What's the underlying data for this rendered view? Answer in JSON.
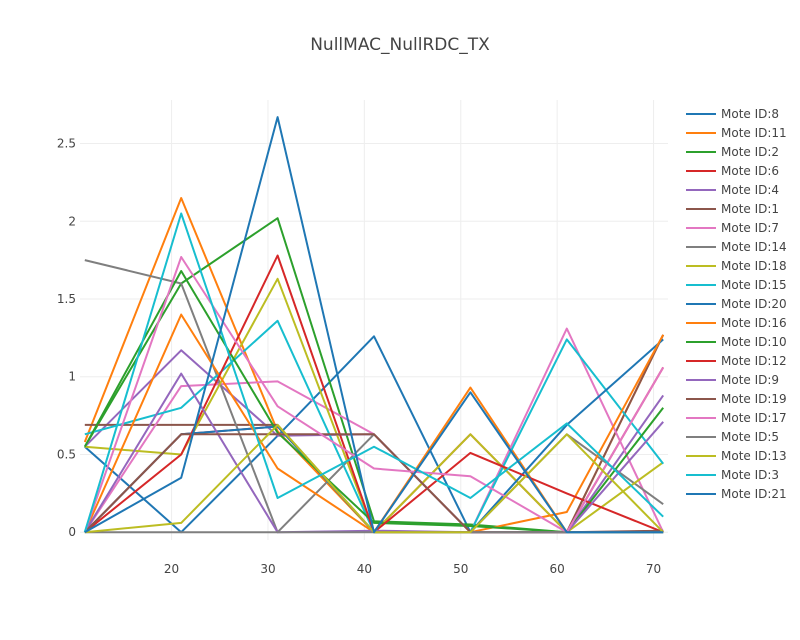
{
  "chart_data": {
    "type": "line",
    "title": "NullMAC_NullRDC_TX",
    "xlabel": "",
    "ylabel": "",
    "xlim": [
      10.5,
      71.5
    ],
    "ylim": [
      -0.05,
      2.78
    ],
    "x_ticks": [
      20,
      30,
      40,
      50,
      60,
      70
    ],
    "y_ticks": [
      0,
      0.5,
      1,
      1.5,
      2,
      2.5
    ],
    "y_tick_labels": [
      "0",
      "0.5",
      "1",
      "1.5",
      "2",
      "2.5"
    ],
    "grid": true,
    "legend_position": "right",
    "series": [
      {
        "name": "Mote ID:8",
        "color": "#1f77b4",
        "x": [
          11,
          21,
          31,
          41,
          51,
          61,
          71
        ],
        "y": [
          0.55,
          0.0,
          0.62,
          1.26,
          0.0,
          0.0,
          0.0
        ]
      },
      {
        "name": "Mote ID:11",
        "color": "#ff7f0e",
        "x": [
          11,
          21,
          31,
          41,
          51,
          61,
          71
        ],
        "y": [
          0.58,
          2.15,
          0.65,
          0.0,
          0.93,
          0.0,
          1.27
        ]
      },
      {
        "name": "Mote ID:2",
        "color": "#2ca02c",
        "x": [
          11,
          21,
          31,
          41,
          51,
          61,
          71
        ],
        "y": [
          0.55,
          1.6,
          2.02,
          0.07,
          0.05,
          0.0,
          0.0
        ]
      },
      {
        "name": "Mote ID:6",
        "color": "#d62728",
        "x": [
          11,
          21,
          31,
          41,
          51,
          61,
          71
        ],
        "y": [
          0.0,
          0.63,
          0.68,
          0.0,
          0.63,
          0.0,
          1.06
        ]
      },
      {
        "name": "Mote ID:4",
        "color": "#9467bd",
        "x": [
          11,
          21,
          31,
          41,
          51,
          61,
          71
        ],
        "y": [
          0.55,
          1.17,
          0.62,
          0.63,
          0.0,
          0.0,
          0.88
        ]
      },
      {
        "name": "Mote ID:1",
        "color": "#8c564b",
        "x": [
          11,
          21,
          31,
          41,
          51,
          61,
          71
        ],
        "y": [
          0.69,
          0.69,
          0.69,
          0.0,
          0.0,
          0.0,
          1.27
        ]
      },
      {
        "name": "Mote ID:7",
        "color": "#e377c2",
        "x": [
          11,
          21,
          31,
          41,
          51,
          61,
          71
        ],
        "y": [
          0.0,
          0.94,
          0.97,
          0.63,
          0.0,
          1.31,
          0.0
        ]
      },
      {
        "name": "Mote ID:14",
        "color": "#7f7f7f",
        "x": [
          11,
          21,
          31,
          41,
          51,
          61,
          71
        ],
        "y": [
          1.75,
          1.6,
          0.0,
          0.63,
          0.0,
          0.63,
          0.18
        ]
      },
      {
        "name": "Mote ID:18",
        "color": "#bcbd22",
        "x": [
          11,
          21,
          31,
          41,
          51,
          61,
          71
        ],
        "y": [
          0.55,
          0.5,
          1.63,
          0.0,
          0.63,
          0.0,
          0.45
        ]
      },
      {
        "name": "Mote ID:15",
        "color": "#17becf",
        "x": [
          11,
          21,
          31,
          41,
          51,
          61,
          71
        ],
        "y": [
          0.63,
          0.8,
          1.36,
          0.0,
          0.0,
          1.24,
          0.44
        ]
      },
      {
        "name": "Mote ID:20",
        "color": "#1f77b4",
        "x": [
          11,
          21,
          31,
          41,
          51,
          61,
          71
        ],
        "y": [
          0.0,
          0.63,
          0.68,
          0.0,
          0.0,
          0.69,
          1.24
        ]
      },
      {
        "name": "Mote ID:16",
        "color": "#ff7f0e",
        "x": [
          11,
          21,
          31,
          41,
          51,
          61,
          71
        ],
        "y": [
          0.0,
          1.4,
          0.41,
          0.0,
          0.0,
          0.13,
          1.27
        ]
      },
      {
        "name": "Mote ID:10",
        "color": "#2ca02c",
        "x": [
          11,
          21,
          31,
          41,
          51,
          61,
          71
        ],
        "y": [
          0.55,
          1.68,
          0.64,
          0.06,
          0.04,
          0.0,
          0.8
        ]
      },
      {
        "name": "Mote ID:12",
        "color": "#d62728",
        "x": [
          11,
          21,
          31,
          41,
          51,
          61,
          71
        ],
        "y": [
          0.0,
          0.5,
          1.78,
          0.0,
          0.51,
          0.25,
          0.0
        ]
      },
      {
        "name": "Mote ID:9",
        "color": "#9467bd",
        "x": [
          11,
          21,
          31,
          41,
          51,
          61,
          71
        ],
        "y": [
          0.0,
          1.02,
          0.0,
          0.01,
          0.0,
          0.0,
          0.71
        ]
      },
      {
        "name": "Mote ID:19",
        "color": "#8c564b",
        "x": [
          11,
          21,
          31,
          41,
          51,
          61,
          71
        ],
        "y": [
          0.0,
          0.63,
          0.63,
          0.63,
          0.0,
          0.0,
          0.01
        ]
      },
      {
        "name": "Mote ID:17",
        "color": "#e377c2",
        "x": [
          11,
          21,
          31,
          41,
          51,
          61,
          71
        ],
        "y": [
          0.0,
          1.77,
          0.81,
          0.41,
          0.36,
          0.0,
          1.06
        ]
      },
      {
        "name": "Mote ID:5",
        "color": "#7f7f7f",
        "x": [
          11,
          21,
          31,
          41,
          51,
          61,
          71
        ],
        "y": [
          0.0,
          0.0,
          0.0,
          0.0,
          0.0,
          0.0,
          0.0
        ]
      },
      {
        "name": "Mote ID:13",
        "color": "#bcbd22",
        "x": [
          11,
          21,
          31,
          41,
          51,
          61,
          71
        ],
        "y": [
          0.0,
          0.06,
          0.69,
          0.0,
          0.0,
          0.63,
          0.0
        ]
      },
      {
        "name": "Mote ID:3",
        "color": "#17becf",
        "x": [
          11,
          21,
          31,
          41,
          51,
          61,
          71
        ],
        "y": [
          0.0,
          2.05,
          0.22,
          0.55,
          0.22,
          0.7,
          0.1
        ]
      },
      {
        "name": "Mote ID:21",
        "color": "#1f77b4",
        "x": [
          11,
          21,
          31,
          41,
          51,
          61,
          71
        ],
        "y": [
          0.0,
          0.35,
          2.67,
          0.0,
          0.9,
          0.0,
          0.0
        ]
      }
    ]
  }
}
